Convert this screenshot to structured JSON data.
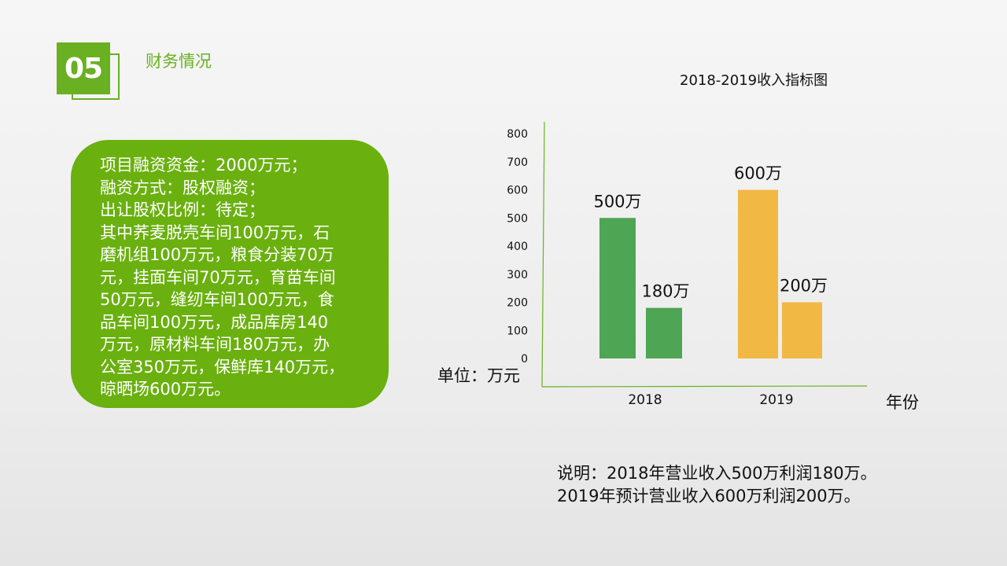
{
  "section": {
    "number": "05",
    "title": "财务情况"
  },
  "info_lines": [
    "项目融资资金：2000万元；",
    "融资方式：股权融资；",
    "出让股权比例：待定；",
    "其中荞麦脱壳车间100万元，石",
    "磨机组100万元，粮食分装70万",
    "元，挂面车间70万元，育苗车间",
    "50万元，缝纫车间100万元，食",
    "品车间100万元，成品库房140",
    "万元，原材料车间180万元，办",
    "公室350万元，保鲜库140万元，",
    "晾晒场600万元。"
  ],
  "chart_data": {
    "type": "bar",
    "title": "2018-2019收入指标图",
    "categories": [
      "2018",
      "2019"
    ],
    "series": [
      {
        "values": [
          500,
          600
        ],
        "labels": [
          "500万",
          "600万"
        ]
      },
      {
        "values": [
          180,
          200
        ],
        "labels": [
          "180万",
          "200万"
        ]
      }
    ],
    "category_colors": [
      "#4ea553",
      "#f1b843"
    ],
    "ylim": [
      0,
      800
    ],
    "yticks": [
      0,
      100,
      200,
      300,
      400,
      500,
      600,
      700,
      800
    ],
    "ylabel": "单位：万元",
    "xlabel": "年份",
    "grid": false,
    "legend": "none"
  },
  "note_lines": [
    "说明：2018年营业收入500万利润180万。",
    "2019年预计营业收入600万利润200万。"
  ]
}
